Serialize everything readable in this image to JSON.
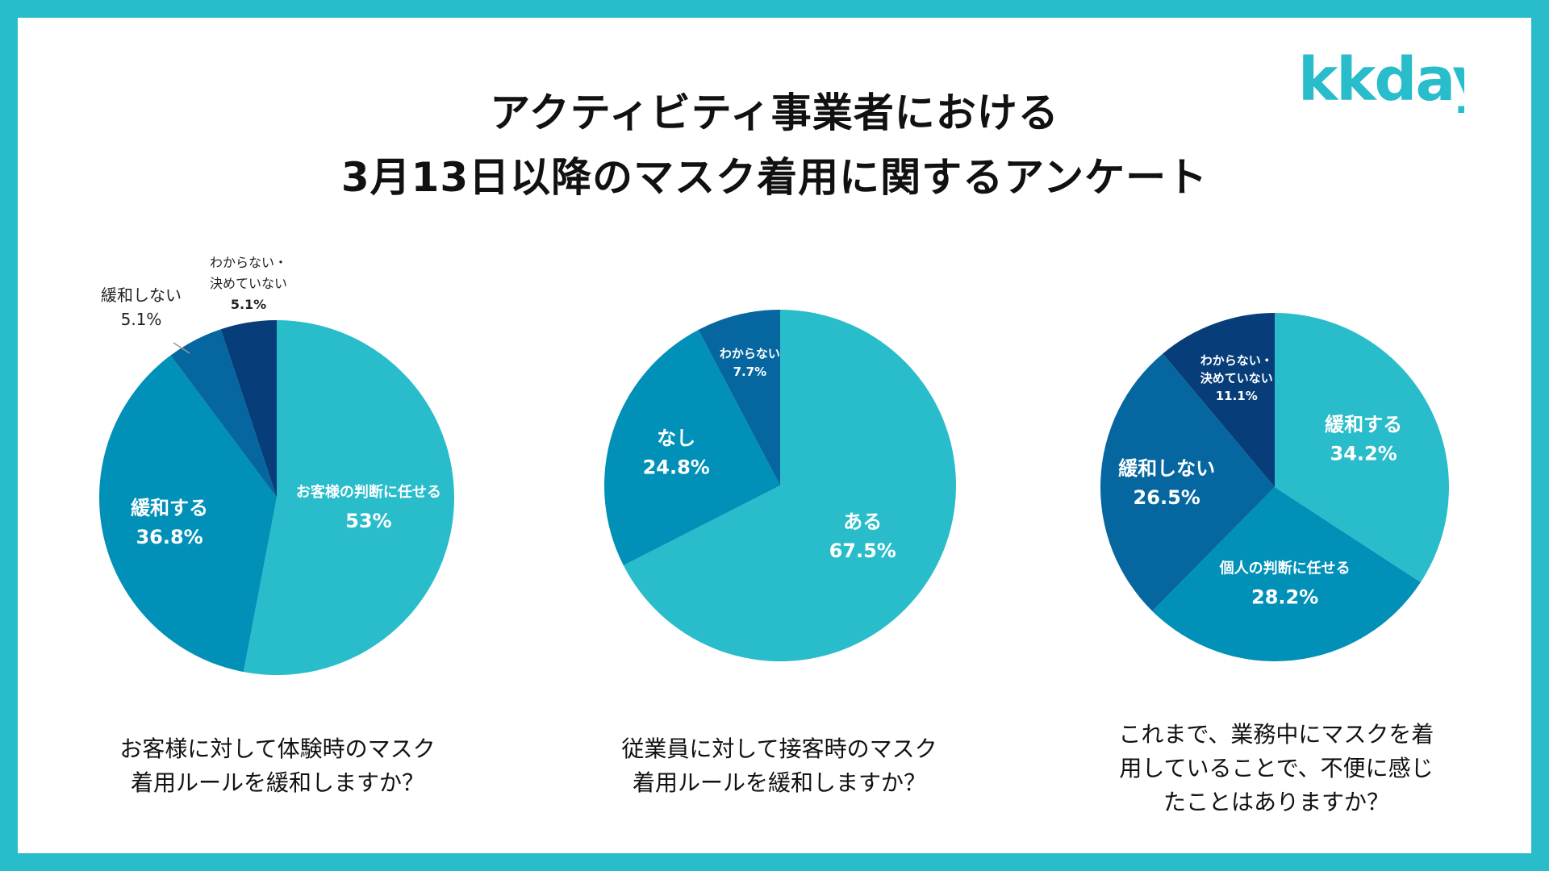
{
  "title": {
    "line1": "アクティビティ事業者における",
    "line2": "3月13日以降のマスク着用に関するアンケート"
  },
  "logo": {
    "text": "kkday",
    "color": "#29bccb"
  },
  "colors": {
    "frame": "#29bccb",
    "slice_lightest": "#29bccb",
    "slice_mid": "#0190b8",
    "slice_dark": "#0667a0",
    "slice_darkest": "#073d78"
  },
  "questions": {
    "q1": [
      "お客様に対して体験時のマスク",
      "着用ルールを緩和しますか？"
    ],
    "q2": [
      "従業員に対して接客時のマスク",
      "着用ルールを緩和しますか？"
    ],
    "q3": [
      "これまで、業務中にマスクを着",
      "用していることで、不便に感じ",
      "たことはありますか？"
    ]
  },
  "chart_data": [
    {
      "type": "pie",
      "title": "お客様に対して体験時のマスク着用ルールを緩和しますか？",
      "slices": [
        {
          "label": "お客様の判断に任せる",
          "value": 53,
          "display": "53%",
          "color": "#29bccb"
        },
        {
          "label": "緩和する",
          "value": 36.8,
          "display": "36.8%",
          "color": "#0190b8"
        },
        {
          "label": "緩和しない",
          "value": 5.1,
          "display": "5.1%",
          "color": "#0667a0"
        },
        {
          "label": "わからない・決めていない",
          "value": 5.1,
          "display": "5.1%",
          "color": "#073d78"
        }
      ]
    },
    {
      "type": "pie",
      "title": "従業員に対して接客時のマスク着用ルールを緩和しますか？",
      "slices": [
        {
          "label": "ある",
          "value": 67.5,
          "display": "67.5%",
          "color": "#29bccb"
        },
        {
          "label": "なし",
          "value": 24.8,
          "display": "24.8%",
          "color": "#0190b8"
        },
        {
          "label": "わからない",
          "value": 7.7,
          "display": "7.7%",
          "color": "#0667a0"
        }
      ]
    },
    {
      "type": "pie",
      "title": "これまで、業務中にマスクを着用していることで、不便に感じたことはありますか？",
      "slices": [
        {
          "label": "緩和する",
          "value": 34.2,
          "display": "34.2%",
          "color": "#29bccb"
        },
        {
          "label": "個人の判断に任せる",
          "value": 28.2,
          "display": "28.2%",
          "color": "#0190b8"
        },
        {
          "label": "緩和しない",
          "value": 26.5,
          "display": "26.5%",
          "color": "#0667a0"
        },
        {
          "label": "わからない・決めていない",
          "value": 11.1,
          "display": "11.1%",
          "color": "#073d78"
        }
      ]
    }
  ]
}
